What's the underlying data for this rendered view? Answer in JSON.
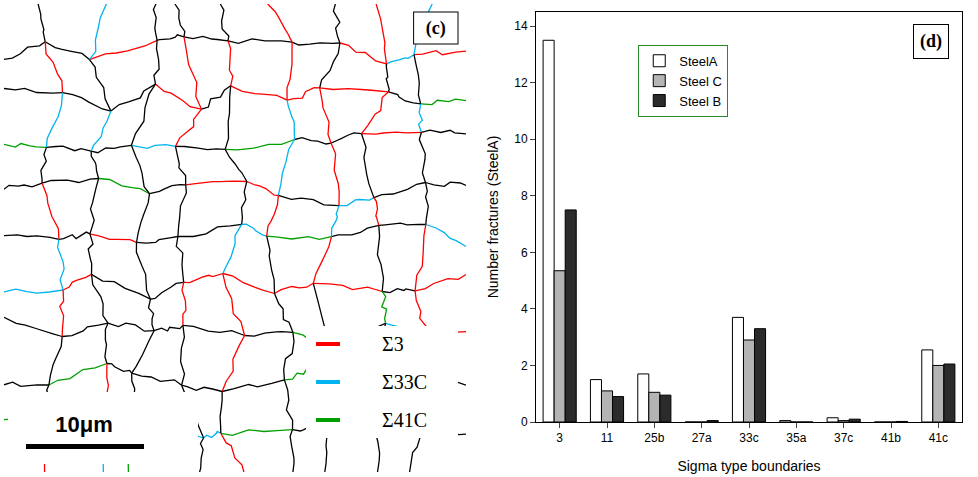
{
  "chart_data": {
    "type": "bar",
    "label": "(d)",
    "x_label": "Sigma type boundaries",
    "y_label": "Number fractures (SteelA)",
    "categories": [
      "3",
      "11",
      "25b",
      "27a",
      "33c",
      "35a",
      "37c",
      "41b",
      "41c"
    ],
    "series": [
      {
        "name": "SteelA",
        "color": "#ffffff",
        "values": [
          13.5,
          1.5,
          1.7,
          0,
          3.7,
          0.05,
          0.15,
          0,
          2.55
        ]
      },
      {
        "name": "Steel C",
        "color": "#b4b4b4",
        "values": [
          5.35,
          1.1,
          1.05,
          0,
          2.9,
          0,
          0.05,
          0,
          2.0
        ]
      },
      {
        "name": "Steel B",
        "color": "#2b2b2b",
        "values": [
          7.5,
          0.9,
          0.95,
          0.05,
          3.3,
          0,
          0.1,
          0.02,
          2.05
        ]
      }
    ],
    "ylim": [
      0,
      14.5
    ],
    "yticks": [
      0,
      2,
      4,
      6,
      8,
      10,
      12,
      14
    ],
    "grid": false,
    "legend": "upper center"
  },
  "micrograph": {
    "label": "(c)",
    "scale_bar": "10μm",
    "legend": [
      {
        "name": "Σ3",
        "color": "#ff0000"
      },
      {
        "name": "Σ33C",
        "color": "#00b4f0"
      },
      {
        "name": "Σ41C",
        "color": "#00a000"
      }
    ]
  }
}
